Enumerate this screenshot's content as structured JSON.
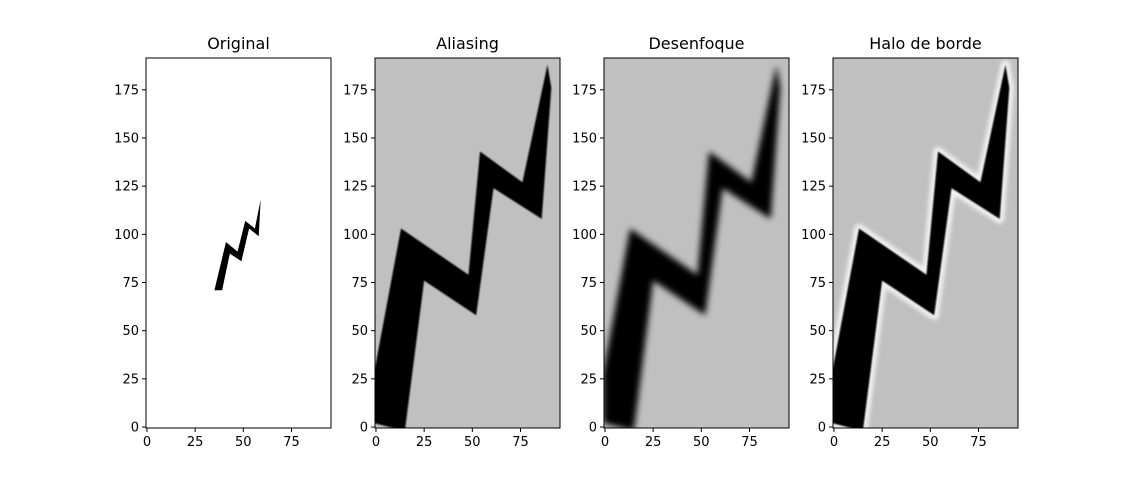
{
  "figure": {
    "background": "#ffffff",
    "image_gray": "#c0c0c0",
    "halo_color": "#f2f2f2",
    "stroke_color": "#000000"
  },
  "chart_data": [
    {
      "type": "image",
      "title": "Original",
      "image_width": 96,
      "image_height": 192,
      "xlim": [
        -0.5,
        95.5
      ],
      "ylim": [
        191.5,
        -0.5
      ],
      "xticks": [
        0,
        25,
        50,
        75
      ],
      "yticks": [
        0,
        25,
        50,
        75,
        100,
        125,
        150,
        175
      ],
      "content": "small lightning bolt on gray patch",
      "patch_extent": {
        "x": [
          35,
          59
        ],
        "y": [
          71,
          119
        ]
      },
      "bolt_points": [
        [
          35,
          71
        ],
        [
          39,
          71
        ],
        [
          43,
          90
        ],
        [
          49,
          86
        ],
        [
          53,
          103
        ],
        [
          58,
          99
        ],
        [
          59,
          118
        ],
        [
          56,
          103
        ],
        [
          51,
          107
        ],
        [
          47,
          91
        ],
        [
          41,
          96
        ]
      ]
    },
    {
      "type": "image",
      "title": "Aliasing",
      "image_width": 96,
      "image_height": 192,
      "xlim": [
        -0.5,
        95.5
      ],
      "ylim": [
        191.5,
        -0.5
      ],
      "xticks": [
        0,
        25,
        50,
        75
      ],
      "yticks": [
        0,
        25,
        50,
        75,
        100,
        125,
        150,
        175
      ],
      "content": "upscaled bolt, blocky edges",
      "bolt_points": [
        [
          -1,
          2
        ],
        [
          15,
          -2
        ],
        [
          25,
          76
        ],
        [
          52,
          58
        ],
        [
          61,
          124
        ],
        [
          86,
          108
        ],
        [
          91,
          176
        ],
        [
          89,
          188
        ],
        [
          76,
          127
        ],
        [
          54,
          143
        ],
        [
          48,
          79
        ],
        [
          13,
          103
        ],
        [
          -1,
          28
        ]
      ]
    },
    {
      "type": "image",
      "title": "Desenfoque",
      "image_width": 96,
      "image_height": 192,
      "xlim": [
        -0.5,
        95.5
      ],
      "ylim": [
        191.5,
        -0.5
      ],
      "xticks": [
        0,
        25,
        50,
        75
      ],
      "yticks": [
        0,
        25,
        50,
        75,
        100,
        125,
        150,
        175
      ],
      "content": "upscaled bolt, blurred edges",
      "bolt_points": [
        [
          -1,
          2
        ],
        [
          15,
          -2
        ],
        [
          25,
          76
        ],
        [
          52,
          58
        ],
        [
          61,
          124
        ],
        [
          86,
          108
        ],
        [
          91,
          176
        ],
        [
          89,
          188
        ],
        [
          76,
          127
        ],
        [
          54,
          143
        ],
        [
          48,
          79
        ],
        [
          13,
          103
        ],
        [
          -1,
          28
        ]
      ]
    },
    {
      "type": "image",
      "title": "Halo de borde",
      "image_width": 96,
      "image_height": 192,
      "xlim": [
        -0.5,
        95.5
      ],
      "ylim": [
        191.5,
        -0.5
      ],
      "xticks": [
        0,
        25,
        50,
        75
      ],
      "yticks": [
        0,
        25,
        50,
        75,
        100,
        125,
        150,
        175
      ],
      "content": "upscaled bolt, light halo around edges",
      "bolt_points": [
        [
          -1,
          2
        ],
        [
          15,
          -2
        ],
        [
          25,
          76
        ],
        [
          52,
          58
        ],
        [
          61,
          124
        ],
        [
          86,
          108
        ],
        [
          91,
          176
        ],
        [
          89,
          188
        ],
        [
          76,
          127
        ],
        [
          54,
          143
        ],
        [
          48,
          79
        ],
        [
          13,
          103
        ],
        [
          -1,
          28
        ]
      ]
    }
  ]
}
